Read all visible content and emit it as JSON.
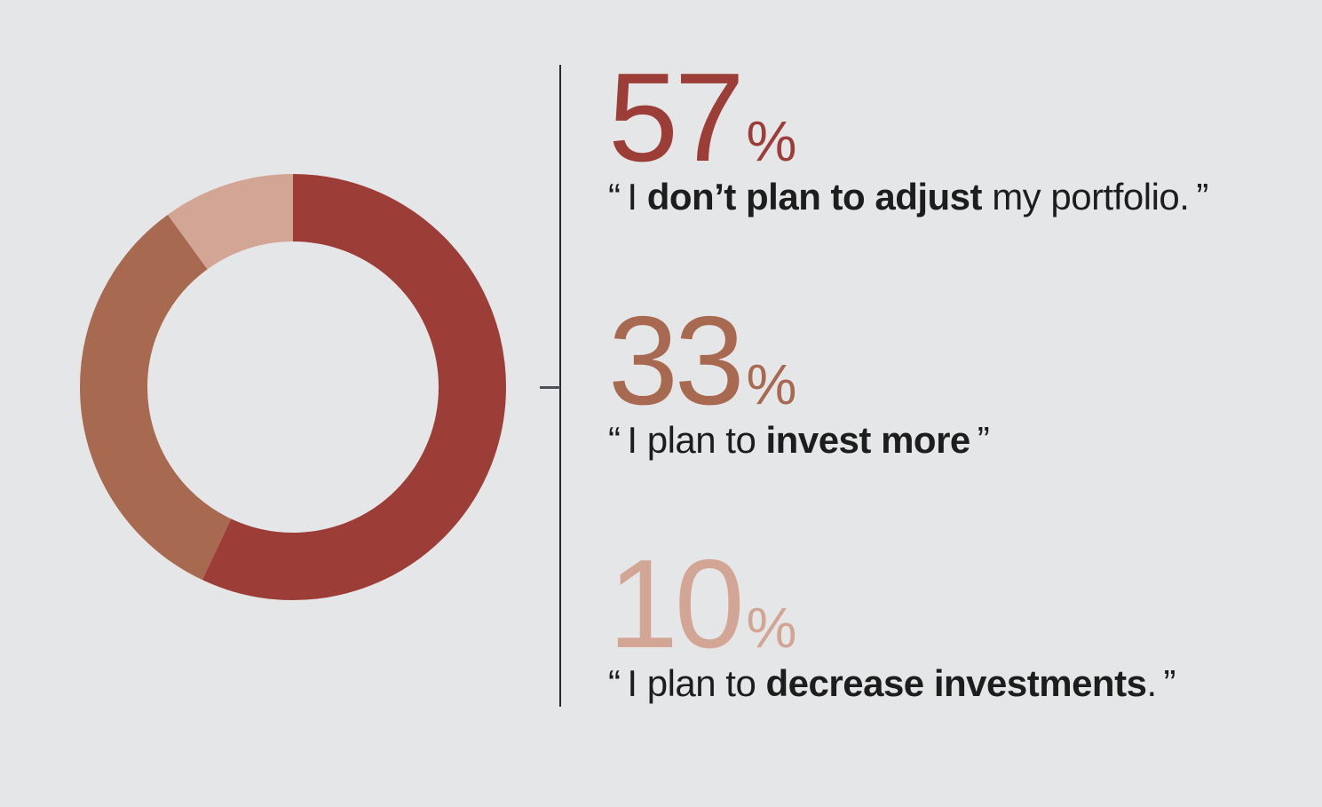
{
  "background_color": "#e5e6e7",
  "chart_data": {
    "type": "pie",
    "subtype": "donut",
    "units": "%",
    "direction": "clockwise",
    "start_angle_deg": 0,
    "inner_radius_ratio": 0.69,
    "legend": "none",
    "segments": [
      {
        "label": "I don’t plan to adjust my portfolio.",
        "value": 57,
        "color": "#9c3d37"
      },
      {
        "label": "I plan to invest more",
        "value": 33,
        "color": "#a86951"
      },
      {
        "label": "I plan to decrease investments.",
        "value": 10,
        "color": "#d2a594"
      }
    ]
  },
  "callouts": [
    {
      "value": "57",
      "unit": "%",
      "quote_prefix": "“ I ",
      "quote_bold": "don’t plan to adjust",
      "quote_suffix": " my portfolio. ”"
    },
    {
      "value": "33",
      "unit": "%",
      "quote_prefix": "“ I plan to ",
      "quote_bold": "invest more",
      "quote_suffix": " ”"
    },
    {
      "value": "10",
      "unit": "%",
      "quote_prefix": "“ I plan to ",
      "quote_bold": "decrease investments",
      "quote_suffix": ". ”"
    }
  ]
}
